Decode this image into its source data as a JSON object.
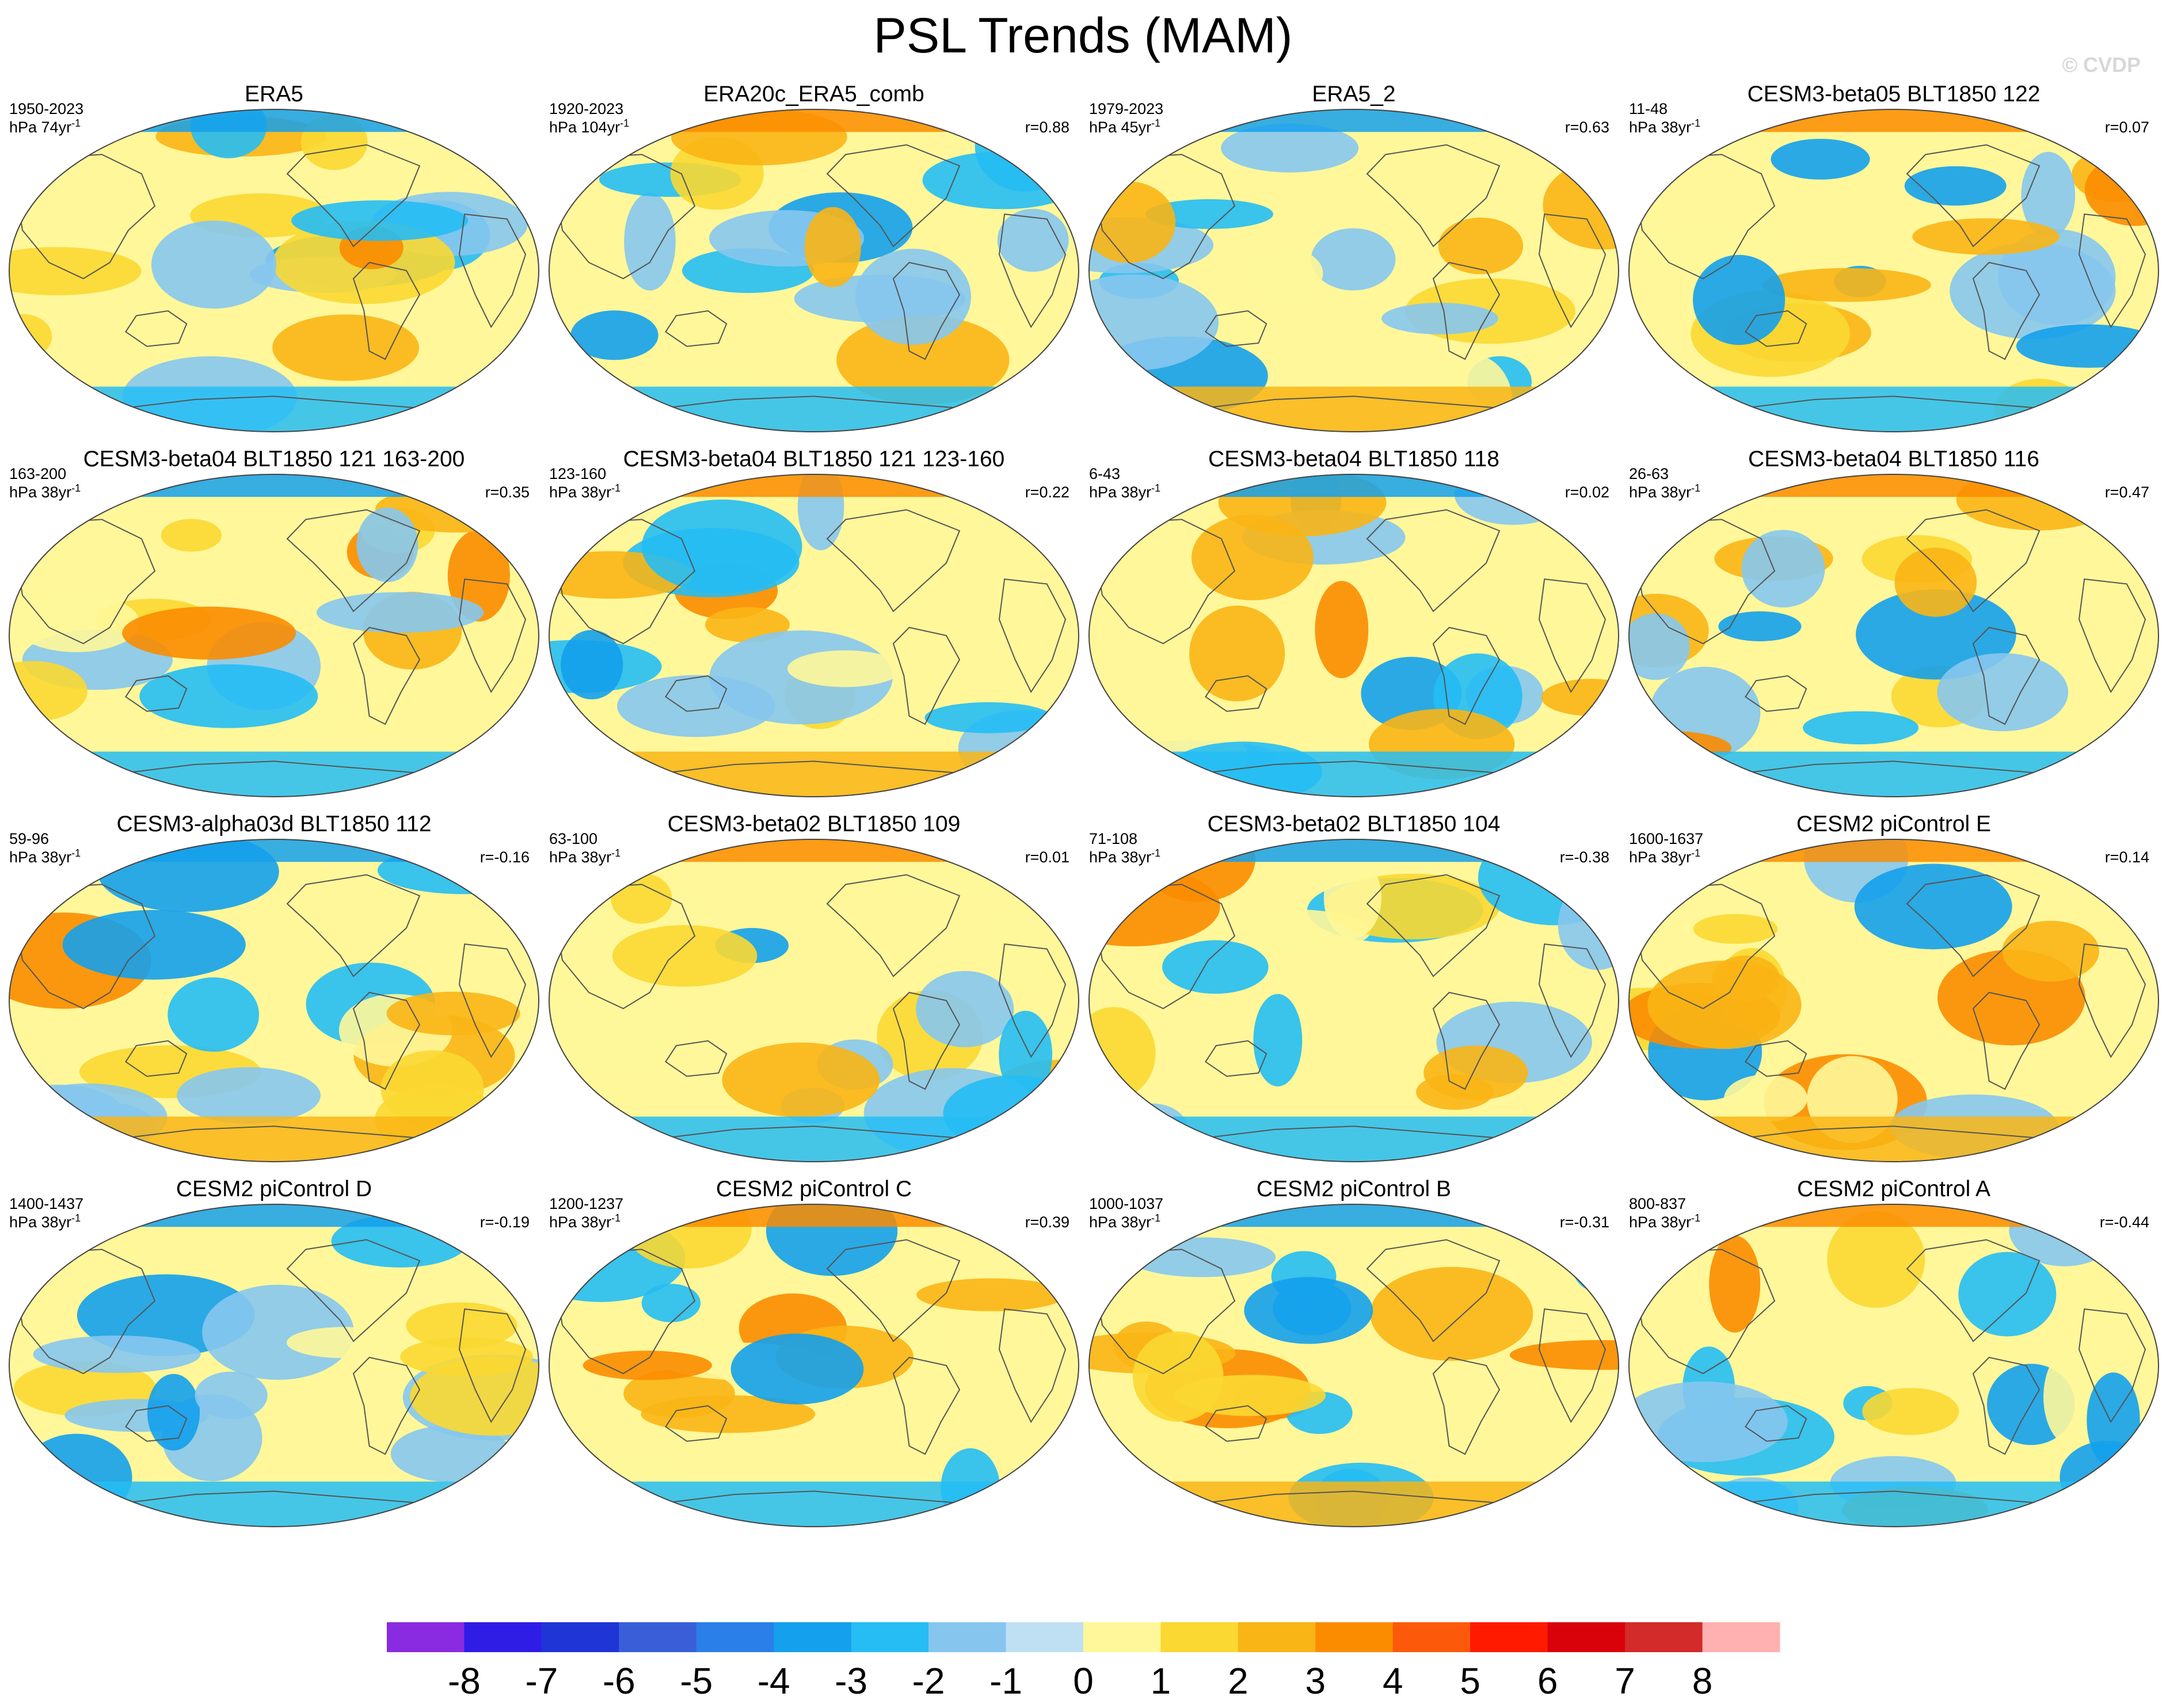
{
  "title": "PSL Trends (MAM)",
  "copyright": "© CVDP",
  "chart_data": {
    "type": "map-panel-grid",
    "title": "PSL Trends (MAM)",
    "variable": "PSL",
    "season": "MAM",
    "units": "hPa",
    "colorbar": {
      "levels": [
        -8,
        -7,
        -6,
        -5,
        -4,
        -3,
        -2,
        -1,
        0,
        1,
        2,
        3,
        4,
        5,
        6,
        7,
        8
      ],
      "colors": [
        "#8a2be2",
        "#2f1de6",
        "#2035d6",
        "#3a5ed8",
        "#2a7fe8",
        "#14a0ec",
        "#25bdf4",
        "#86c6ee",
        "#bfe0f2",
        "#fff79a",
        "#fbd832",
        "#f9b515",
        "#fb8c00",
        "#fc5a0a",
        "#ff1a00",
        "#d9020a",
        "#d32a2a",
        "#ffb0b0"
      ]
    },
    "panels": [
      {
        "title": "ERA5",
        "years": "1950-2023",
        "units_line": "hPa 74yr",
        "corr": "",
        "pattern": 1
      },
      {
        "title": "ERA20c_ERA5_comb",
        "years": "1920-2023",
        "units_line": "hPa 104yr",
        "corr": "r=0.88",
        "pattern": 2
      },
      {
        "title": "ERA5_2",
        "years": "1979-2023",
        "units_line": "hPa 45yr",
        "corr": "r=0.63",
        "pattern": 3
      },
      {
        "title": "CESM3-beta05 BLT1850 122",
        "years": "11-48",
        "units_line": "hPa 38yr",
        "corr": "r=0.07",
        "pattern": 4
      },
      {
        "title": "CESM3-beta04 BLT1850 121 163-200",
        "years": "163-200",
        "units_line": "hPa 38yr",
        "corr": "r=0.35",
        "pattern": 5
      },
      {
        "title": "CESM3-beta04 BLT1850 121 123-160",
        "years": "123-160",
        "units_line": "hPa 38yr",
        "corr": "r=0.22",
        "pattern": 6
      },
      {
        "title": "CESM3-beta04 BLT1850 118",
        "years": "6-43",
        "units_line": "hPa 38yr",
        "corr": "r=0.02",
        "pattern": 7
      },
      {
        "title": "CESM3-beta04 BLT1850 116",
        "years": "26-63",
        "units_line": "hPa 38yr",
        "corr": "r=0.47",
        "pattern": 8
      },
      {
        "title": "CESM3-alpha03d BLT1850 112",
        "years": "59-96",
        "units_line": "hPa 38yr",
        "corr": "r=-0.16",
        "pattern": 9
      },
      {
        "title": "CESM3-beta02 BLT1850 109",
        "years": "63-100",
        "units_line": "hPa 38yr",
        "corr": "r=0.01",
        "pattern": 10
      },
      {
        "title": "CESM3-beta02 BLT1850 104",
        "years": "71-108",
        "units_line": "hPa 38yr",
        "corr": "r=-0.38",
        "pattern": 11
      },
      {
        "title": "CESM2 piControl E",
        "years": "1600-1637",
        "units_line": "hPa 38yr",
        "corr": "r=0.14",
        "pattern": 12
      },
      {
        "title": "CESM2 piControl D",
        "years": "1400-1437",
        "units_line": "hPa 38yr",
        "corr": "r=-0.19",
        "pattern": 13
      },
      {
        "title": "CESM2 piControl C",
        "years": "1200-1237",
        "units_line": "hPa 38yr",
        "corr": "r=0.39",
        "pattern": 14
      },
      {
        "title": "CESM2 piControl B",
        "years": "1000-1037",
        "units_line": "hPa 38yr",
        "corr": "r=-0.31",
        "pattern": 15
      },
      {
        "title": "CESM2 piControl A",
        "years": "800-837",
        "units_line": "hPa 38yr",
        "corr": "r=-0.44",
        "pattern": 16
      }
    ]
  }
}
